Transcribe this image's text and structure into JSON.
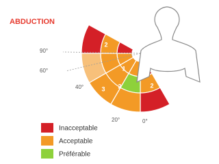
{
  "header": {
    "title": "ABDUCTION"
  },
  "angles": [
    "90°",
    "60°",
    "40°",
    "20°",
    "0°"
  ],
  "segments": [
    "2",
    "1",
    "3",
    "2",
    "2"
  ],
  "legend": [
    "Inacceptable",
    "Acceptable",
    "Préférable"
  ]
}
